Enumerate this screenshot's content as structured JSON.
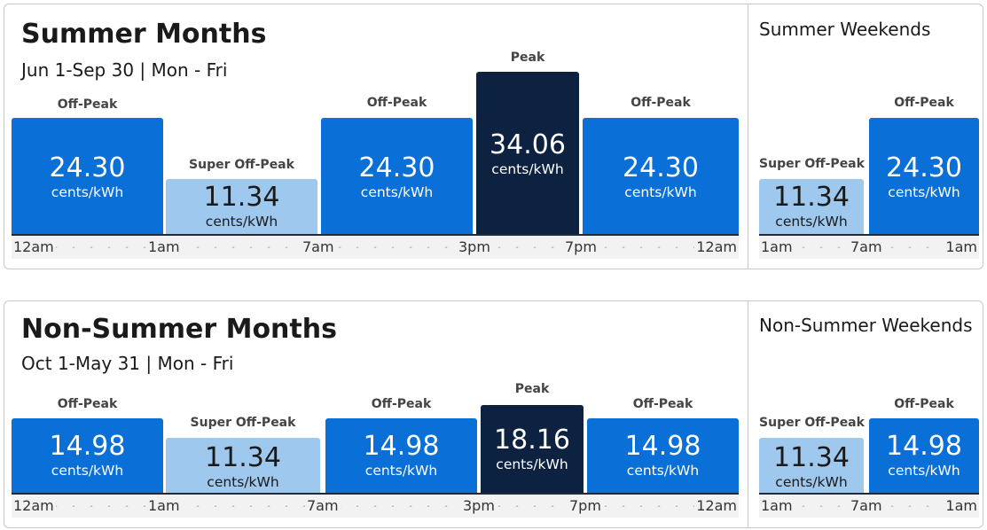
{
  "chart_data": [
    {
      "type": "bar",
      "title": "Summer Months",
      "subtitle": "Jun 1-Sep 30 | Mon - Fri",
      "unit": "cents/kWh",
      "periods": [
        {
          "label": "Off-Peak",
          "value": "24.30",
          "level": "off"
        },
        {
          "label": "Super Off-Peak",
          "value": "11.34",
          "level": "super"
        },
        {
          "label": "Off-Peak",
          "value": "24.30",
          "level": "off"
        },
        {
          "label": "Peak",
          "value": "34.06",
          "level": "peak"
        },
        {
          "label": "Off-Peak",
          "value": "24.30",
          "level": "off"
        }
      ],
      "time_ticks": [
        "12am",
        "1am",
        "7am",
        "3pm",
        "7pm",
        "12am"
      ]
    },
    {
      "type": "bar",
      "title": "Summer Weekends",
      "unit": "cents/kWh",
      "periods": [
        {
          "label": "Super Off-Peak",
          "value": "11.34",
          "level": "super"
        },
        {
          "label": "Off-Peak",
          "value": "24.30",
          "level": "off"
        }
      ],
      "time_ticks": [
        "1am",
        "7am",
        "1am"
      ]
    },
    {
      "type": "bar",
      "title": "Non-Summer Months",
      "subtitle": "Oct 1-May 31 | Mon - Fri",
      "unit": "cents/kWh",
      "periods": [
        {
          "label": "Off-Peak",
          "value": "14.98",
          "level": "off"
        },
        {
          "label": "Super Off-Peak",
          "value": "11.34",
          "level": "super"
        },
        {
          "label": "Off-Peak",
          "value": "14.98",
          "level": "off"
        },
        {
          "label": "Peak",
          "value": "18.16",
          "level": "peak"
        },
        {
          "label": "Off-Peak",
          "value": "14.98",
          "level": "off"
        }
      ],
      "time_ticks": [
        "12am",
        "1am",
        "7am",
        "3pm",
        "7pm",
        "12am"
      ]
    },
    {
      "type": "bar",
      "title": "Non-Summer Weekends",
      "unit": "cents/kWh",
      "periods": [
        {
          "label": "Super Off-Peak",
          "value": "11.34",
          "level": "super"
        },
        {
          "label": "Off-Peak",
          "value": "14.98",
          "level": "off"
        }
      ],
      "time_ticks": [
        "1am",
        "7am",
        "1am"
      ]
    }
  ]
}
